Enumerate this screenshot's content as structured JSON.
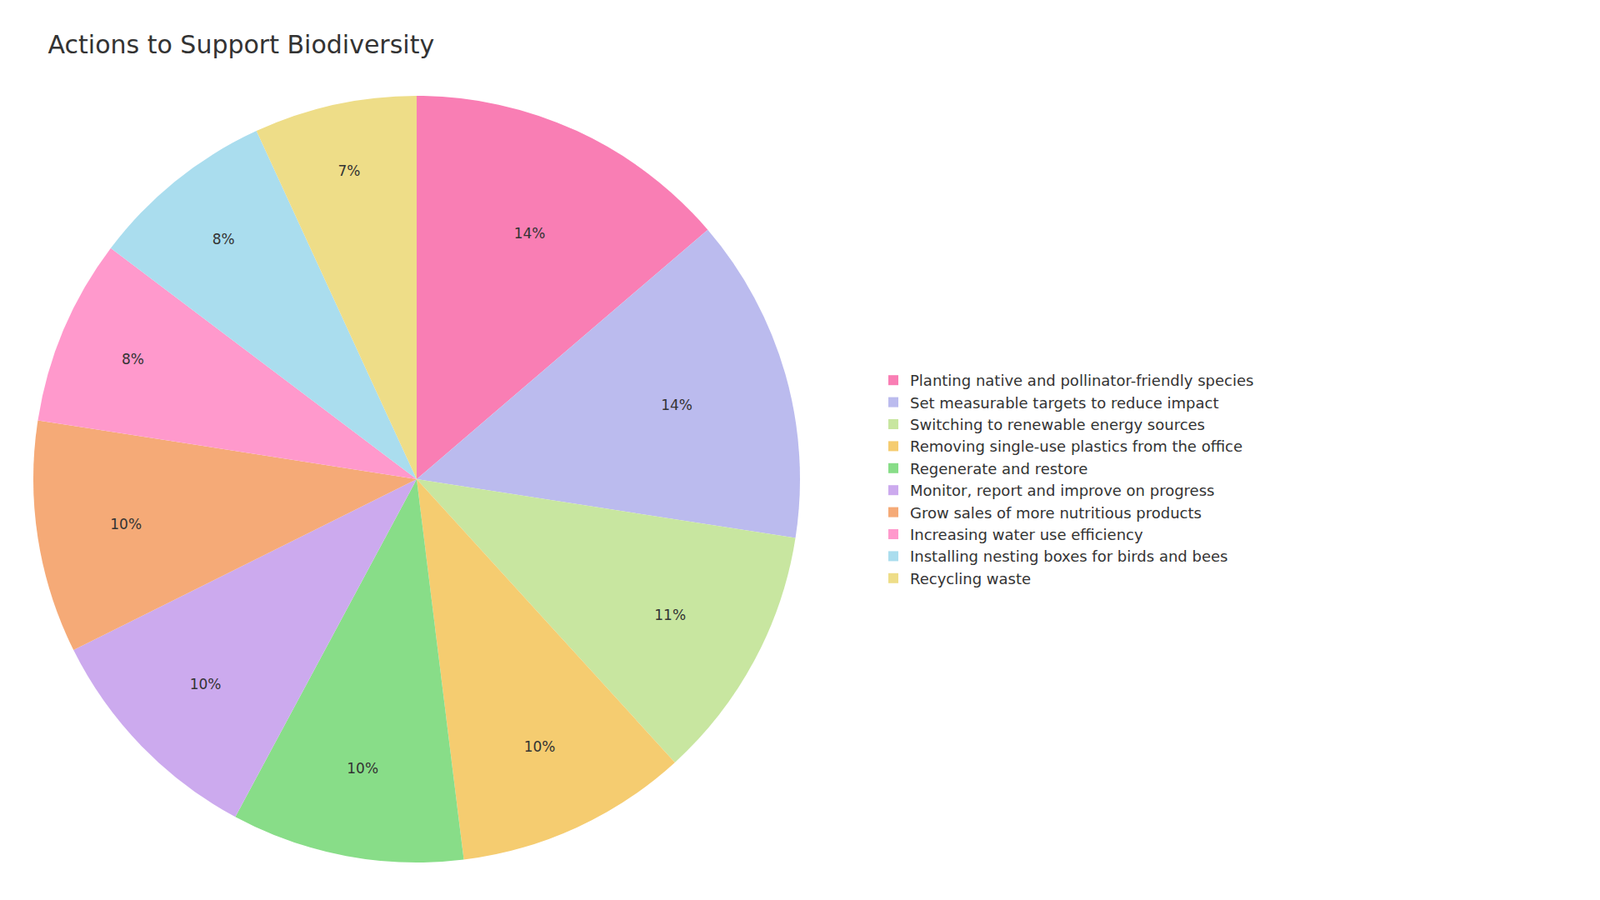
{
  "chart_data": {
    "type": "pie",
    "title": "Actions to Support Biodiversity",
    "categories": [
      "Planting native and pollinator-friendly species",
      "Set measurable targets to reduce impact",
      "Switching to renewable energy sources",
      "Removing single-use plastics from the office",
      "Regenerate and restore",
      "Monitor, report and improve on progress",
      "Grow sales of more nutritious products",
      "Increasing water use efficiency",
      "Installing nesting boxes for birds and bees",
      "Recycling waste"
    ],
    "values": [
      14,
      14,
      11,
      10,
      10,
      10,
      10,
      8,
      8,
      7
    ],
    "value_labels": [
      "14%",
      "14%",
      "11%",
      "10%",
      "10%",
      "10%",
      "10%",
      "8%",
      "8%",
      "7%"
    ],
    "colors": [
      "#F97EB4",
      "#BBBBEE",
      "#C8E6A0",
      "#F5CC70",
      "#88DD88",
      "#CCAAEE",
      "#F5AA77",
      "#FF99CC",
      "#AADDEE",
      "#EEDD88"
    ],
    "data_labels": true,
    "legend": "right"
  }
}
